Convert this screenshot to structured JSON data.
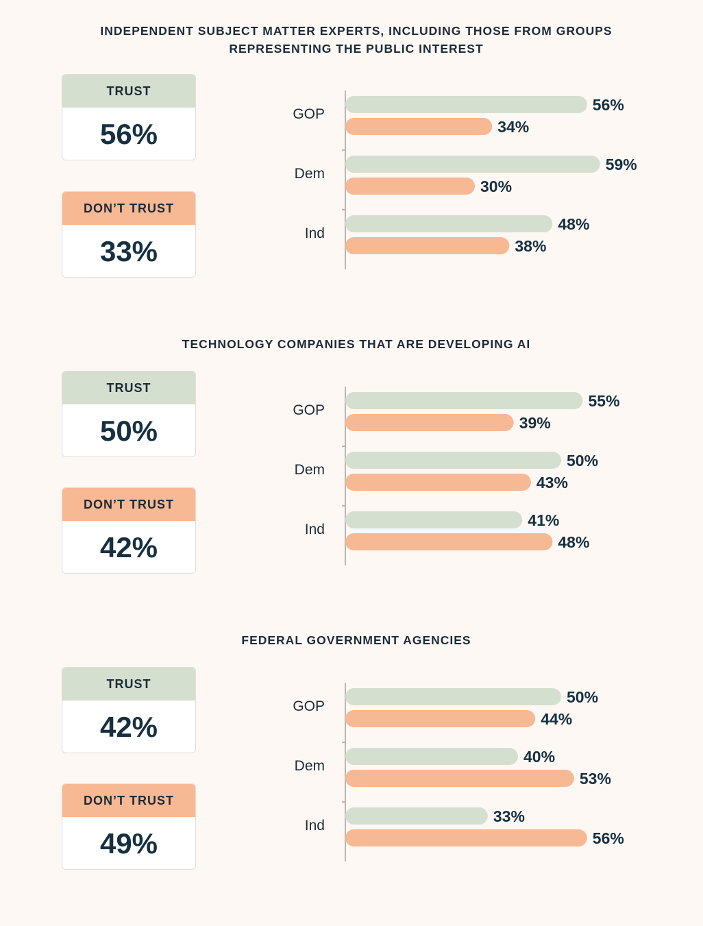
{
  "chart_data": [
    {
      "type": "bar",
      "title": "INDEPENDENT SUBJECT MATTER EXPERTS, INCLUDING THOSE FROM GROUPS REPRESENTING THE PUBLIC INTEREST",
      "overall": {
        "trust_label": "TRUST",
        "trust": "56%",
        "distrust_label": "DON’T TRUST",
        "distrust": "33%"
      },
      "categories": [
        "GOP",
        "Dem",
        "Ind"
      ],
      "series": [
        {
          "name": "Trust",
          "color": "#d5dfd0",
          "values": [
            56,
            59,
            48
          ]
        },
        {
          "name": "Don't trust",
          "color": "#f7b894",
          "values": [
            34,
            30,
            38
          ]
        }
      ]
    },
    {
      "type": "bar",
      "title": "TECHNOLOGY COMPANIES THAT ARE DEVELOPING AI",
      "overall": {
        "trust_label": "TRUST",
        "trust": "50%",
        "distrust_label": "DON’T TRUST",
        "distrust": "42%"
      },
      "categories": [
        "GOP",
        "Dem",
        "Ind"
      ],
      "series": [
        {
          "name": "Trust",
          "color": "#d5dfd0",
          "values": [
            55,
            50,
            41
          ]
        },
        {
          "name": "Don't trust",
          "color": "#f7b894",
          "values": [
            39,
            43,
            48
          ]
        }
      ]
    },
    {
      "type": "bar",
      "title": "FEDERAL GOVERNMENT AGENCIES",
      "overall": {
        "trust_label": "TRUST",
        "trust": "42%",
        "distrust_label": "DON’T TRUST",
        "distrust": "49%"
      },
      "categories": [
        "GOP",
        "Dem",
        "Ind"
      ],
      "series": [
        {
          "name": "Trust",
          "color": "#d5dfd0",
          "values": [
            50,
            40,
            33
          ]
        },
        {
          "name": "Don't trust",
          "color": "#f7b894",
          "values": [
            44,
            53,
            56
          ]
        }
      ]
    }
  ]
}
